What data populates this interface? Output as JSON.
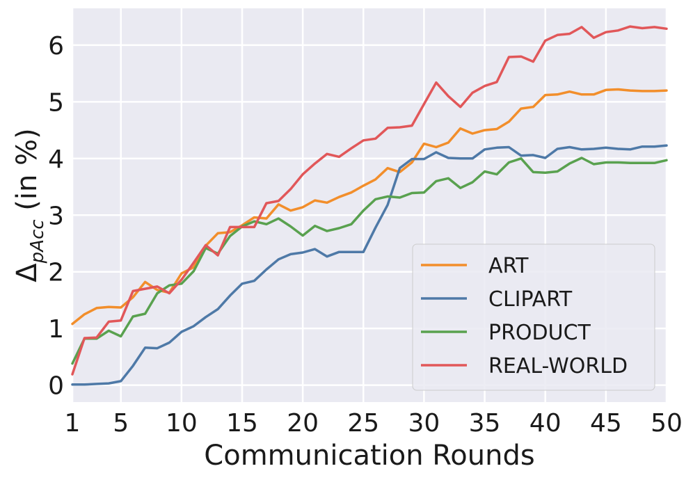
{
  "chart_data": {
    "type": "line",
    "xlabel": "Communication Rounds",
    "ylabel": "Δ",
    "ylabel_sub": "pAcc",
    "ylabel_suffix": " (in %)",
    "xlim": [
      1,
      50
    ],
    "ylim": [
      -0.3,
      6.65
    ],
    "xticks": [
      1,
      5,
      10,
      15,
      20,
      25,
      30,
      35,
      40,
      45,
      50
    ],
    "yticks": [
      0,
      1,
      2,
      3,
      4,
      5,
      6
    ],
    "grid": true,
    "legend_position": "lower-right",
    "x": [
      1,
      2,
      3,
      4,
      5,
      6,
      7,
      8,
      9,
      10,
      11,
      12,
      13,
      14,
      15,
      16,
      17,
      18,
      19,
      20,
      21,
      22,
      23,
      24,
      25,
      26,
      27,
      28,
      29,
      30,
      31,
      32,
      33,
      34,
      35,
      36,
      37,
      38,
      39,
      40,
      41,
      42,
      43,
      44,
      45,
      46,
      47,
      48,
      49,
      50
    ],
    "series": [
      {
        "name": "ART",
        "color": "#f28e2b",
        "values": [
          1.08,
          1.25,
          1.36,
          1.38,
          1.37,
          1.55,
          1.82,
          1.68,
          1.63,
          1.97,
          2.08,
          2.46,
          2.68,
          2.7,
          2.82,
          2.96,
          2.94,
          3.19,
          3.08,
          3.14,
          3.26,
          3.22,
          3.32,
          3.4,
          3.52,
          3.63,
          3.83,
          3.76,
          3.93,
          4.26,
          4.2,
          4.28,
          4.53,
          4.44,
          4.5,
          4.52,
          4.65,
          4.88,
          4.91,
          5.12,
          5.13,
          5.18,
          5.13,
          5.13,
          5.21,
          5.22,
          5.2,
          5.19,
          5.19,
          5.2
        ]
      },
      {
        "name": "CLIPART",
        "color": "#4e79a7",
        "values": [
          0.01,
          0.01,
          0.02,
          0.03,
          0.07,
          0.34,
          0.66,
          0.65,
          0.75,
          0.94,
          1.04,
          1.2,
          1.34,
          1.58,
          1.79,
          1.84,
          2.04,
          2.22,
          2.31,
          2.34,
          2.4,
          2.27,
          2.35,
          2.35,
          2.35,
          2.78,
          3.18,
          3.83,
          3.99,
          3.99,
          4.11,
          4.01,
          4.0,
          4.0,
          4.16,
          4.19,
          4.2,
          4.05,
          4.06,
          4.01,
          4.17,
          4.2,
          4.16,
          4.17,
          4.19,
          4.17,
          4.16,
          4.21,
          4.21,
          4.23
        ]
      },
      {
        "name": "PRODUCT",
        "color": "#59a14f",
        "values": [
          0.38,
          0.82,
          0.82,
          0.96,
          0.86,
          1.21,
          1.26,
          1.62,
          1.76,
          1.79,
          2.01,
          2.42,
          2.32,
          2.63,
          2.8,
          2.89,
          2.84,
          2.94,
          2.8,
          2.64,
          2.81,
          2.72,
          2.77,
          2.84,
          3.08,
          3.28,
          3.33,
          3.31,
          3.39,
          3.4,
          3.6,
          3.65,
          3.48,
          3.58,
          3.77,
          3.72,
          3.93,
          4.0,
          3.76,
          3.75,
          3.77,
          3.91,
          4.01,
          3.9,
          3.93,
          3.93,
          3.92,
          3.92,
          3.92,
          3.97
        ]
      },
      {
        "name": "REAL-WORLD",
        "color": "#e15759",
        "values": [
          0.19,
          0.83,
          0.84,
          1.12,
          1.14,
          1.66,
          1.7,
          1.74,
          1.62,
          1.86,
          2.16,
          2.47,
          2.29,
          2.79,
          2.79,
          2.79,
          3.21,
          3.25,
          3.46,
          3.72,
          3.91,
          4.08,
          4.03,
          4.18,
          4.32,
          4.35,
          4.54,
          4.55,
          4.58,
          4.96,
          5.34,
          5.1,
          4.91,
          5.16,
          5.28,
          5.35,
          5.79,
          5.8,
          5.71,
          6.08,
          6.18,
          6.2,
          6.32,
          6.13,
          6.23,
          6.26,
          6.33,
          6.3,
          6.32,
          6.29
        ]
      }
    ]
  }
}
